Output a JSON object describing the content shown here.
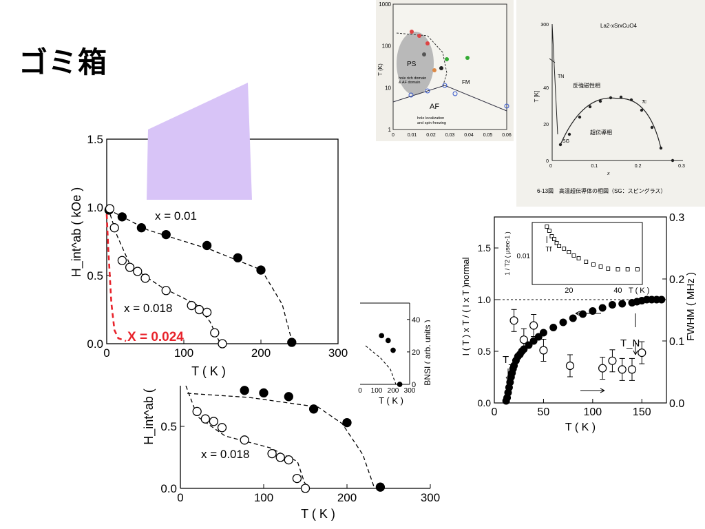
{
  "page": {
    "title": "ゴミ箱"
  },
  "colors": {
    "highlight": "#d8c4f7",
    "accent_red": "#e8232b",
    "axis": "#000000"
  },
  "chart_data": [
    {
      "id": "back-chart",
      "type": "scatter",
      "title": "",
      "xlabel": "T ( K )",
      "ylabel": "H_int^ab (",
      "xlim": [
        0,
        300
      ],
      "ylim": [
        0,
        0.8
      ],
      "xticks": [
        "0",
        "100",
        "200",
        "300"
      ],
      "yticks": [
        "0.0",
        "0.5"
      ],
      "annotations": [
        "x = 0.018"
      ],
      "series": [
        {
          "name": "x = 0.01",
          "marker": "filled",
          "x": [
            77,
            100,
            130,
            160,
            200,
            240
          ],
          "y": [
            0.79,
            0.77,
            0.74,
            0.64,
            0.53,
            0.01
          ]
        },
        {
          "name": "x = 0.018",
          "marker": "open",
          "x": [
            20,
            30,
            40,
            50,
            77,
            110,
            120,
            130,
            140,
            150
          ],
          "y": [
            0.62,
            0.56,
            0.54,
            0.49,
            0.39,
            0.28,
            0.25,
            0.23,
            0.08,
            0.0
          ]
        }
      ]
    },
    {
      "id": "front-chart",
      "type": "scatter",
      "title": "",
      "xlabel": "T ( K )",
      "ylabel": "H_int^ab ( kOe )",
      "xlim": [
        0,
        300
      ],
      "ylim": [
        0,
        1.5
      ],
      "xticks": [
        "0",
        "100",
        "200",
        "300"
      ],
      "yticks": [
        "0.0",
        "0.5",
        "1.0",
        "1.5"
      ],
      "annotations": [
        "x = 0.01",
        "x = 0.018",
        "X = 0.024"
      ],
      "series": [
        {
          "name": "x = 0.01",
          "marker": "filled",
          "x": [
            3,
            20,
            45,
            77,
            130,
            170,
            200,
            240
          ],
          "y": [
            0.98,
            0.93,
            0.85,
            0.8,
            0.72,
            0.63,
            0.54,
            0.01
          ]
        },
        {
          "name": "x = 0.018",
          "marker": "open",
          "x": [
            4,
            10,
            20,
            30,
            40,
            50,
            77,
            110,
            120,
            130,
            140,
            150
          ],
          "y": [
            0.99,
            0.85,
            0.61,
            0.56,
            0.53,
            0.48,
            0.39,
            0.28,
            0.25,
            0.23,
            0.08,
            0.0
          ]
        },
        {
          "name": "X = 0.024",
          "marker": "dashed-line",
          "x": [
            0,
            2,
            6,
            10,
            15,
            25
          ],
          "y": [
            0.95,
            0.7,
            0.3,
            0.1,
            0.04,
            0.02
          ]
        }
      ]
    },
    {
      "id": "bnsi-chart",
      "type": "scatter",
      "title": "",
      "xlabel": "T ( K )",
      "ylabel": "BNSI ( arb. units )",
      "xlim": [
        0,
        300
      ],
      "ylim": [
        0,
        45
      ],
      "xticks": [
        "0",
        "100",
        "200",
        "300"
      ],
      "yticks": [
        "0",
        "20",
        "40"
      ],
      "series": [
        {
          "name": "",
          "marker": "filled",
          "x": [
            130,
            170,
            200,
            240
          ],
          "y": [
            30,
            27,
            21,
            0
          ]
        }
      ]
    },
    {
      "id": "nmr-chart",
      "type": "scatter",
      "title": "",
      "xlabel": "T ( K )",
      "ylabel": "I ( T ) x T / ( I x T )normal",
      "y2label": "FWHM ( MHz )",
      "xlim": [
        0,
        175
      ],
      "ylim": [
        0,
        1.8
      ],
      "y2lim": [
        0,
        0.3
      ],
      "xticks": [
        "0",
        "50",
        "100",
        "150"
      ],
      "yticks": [
        "0.0",
        "0.5",
        "1.0",
        "1.5"
      ],
      "y2ticks": [
        "0.0",
        "0.1",
        "0.2",
        "0.3"
      ],
      "annotations": [
        "T_f",
        "T_N"
      ],
      "series": [
        {
          "name": "I(T)xT",
          "marker": "filled",
          "x": [
            12,
            13,
            14,
            15,
            16,
            17,
            18,
            19,
            20,
            22,
            24,
            26,
            28,
            30,
            35,
            40,
            45,
            50,
            60,
            70,
            80,
            90,
            100,
            110,
            120,
            130,
            140,
            145,
            150,
            155,
            160,
            165,
            170
          ],
          "y": [
            0.02,
            0.05,
            0.1,
            0.15,
            0.2,
            0.25,
            0.29,
            0.33,
            0.36,
            0.41,
            0.45,
            0.47,
            0.5,
            0.52,
            0.56,
            0.6,
            0.64,
            0.68,
            0.73,
            0.78,
            0.82,
            0.86,
            0.89,
            0.92,
            0.95,
            0.96,
            0.97,
            0.98,
            0.99,
            1.0,
            1.0,
            1.0,
            1.0
          ]
        },
        {
          "name": "FWHM",
          "marker": "open",
          "x": [
            20,
            30,
            40,
            50,
            77,
            110,
            120,
            130,
            140,
            150
          ],
          "y2": [
            0.133,
            0.102,
            0.125,
            0.085,
            0.06,
            0.056,
            0.068,
            0.054,
            0.054,
            0.081
          ]
        }
      ],
      "inset": {
        "xlabel": "T  ( K )",
        "ylabel": "1 / T2 ( μsec-1 )",
        "xticks": [
          "20",
          "40"
        ],
        "yticks": [
          "0.01"
        ],
        "annotations": [
          "Tf"
        ]
      }
    },
    {
      "id": "phase-diagram-1",
      "type": "scatter",
      "title": "",
      "xlabel": "",
      "ylabel": "T (K)",
      "ylog": true,
      "xticks": [
        "0",
        "0.01",
        "0.02",
        "0.03",
        "0.04",
        "0.05",
        "0.06"
      ],
      "yticks": [
        "1",
        "10",
        "100",
        "1000"
      ],
      "annotations": [
        "PS",
        "hole rich domain",
        "& AF domain",
        "FM",
        "AF",
        "hole localization",
        "and spin freezing"
      ]
    },
    {
      "id": "phase-diagram-2",
      "type": "line",
      "title": "La2-xSrxCuO4",
      "xlabel": "x",
      "ylabel": "T [K]",
      "xticks": [
        "0",
        "0.1",
        "0.2",
        "0.3"
      ],
      "yticks": [
        "0",
        "20",
        "40",
        "300"
      ],
      "annotations": [
        "TN",
        "反強磁性相",
        "Tc",
        "超伝導相",
        "SG"
      ],
      "caption": "6-13図　高温超伝導体の相図（SG：スピングラス）"
    }
  ]
}
